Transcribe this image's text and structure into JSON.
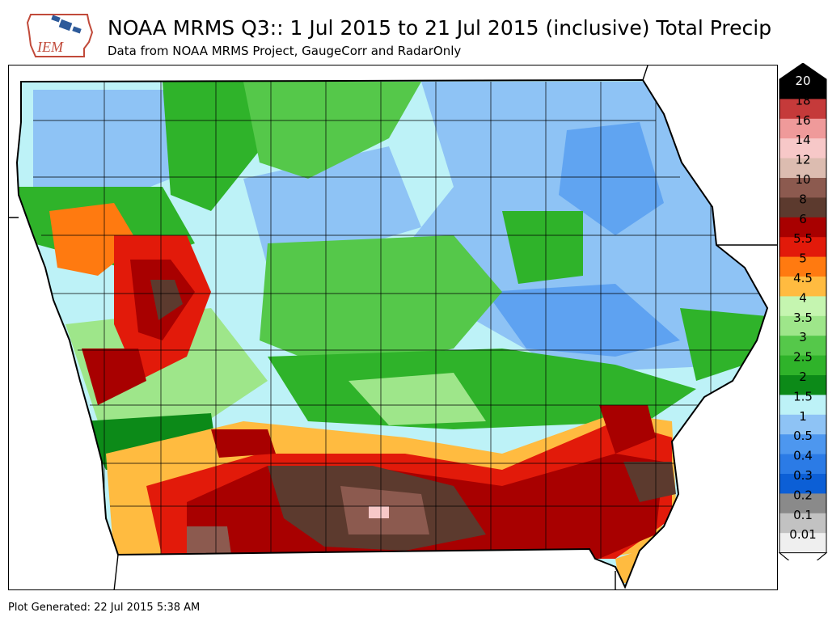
{
  "header": {
    "logo_text": "IEM",
    "title": "NOAA MRMS Q3:: 1 Jul 2015 to 21 Jul 2015 (inclusive) Total Precip",
    "subtitle": "Data from NOAA MRMS Project, GaugeCorr and RadarOnly"
  },
  "legend": {
    "levels": [
      {
        "label": "20",
        "color": "#000000"
      },
      {
        "label": "18",
        "color": "#c53a3a"
      },
      {
        "label": "16",
        "color": "#ef9a9a"
      },
      {
        "label": "14",
        "color": "#f7c8c8"
      },
      {
        "label": "12",
        "color": "#dcbcb0"
      },
      {
        "label": "10",
        "color": "#8c5a4f"
      },
      {
        "label": "8",
        "color": "#5c3a2e"
      },
      {
        "label": "6",
        "color": "#a80000"
      },
      {
        "label": "5.5",
        "color": "#e21a0a"
      },
      {
        "label": "5",
        "color": "#ff7a10"
      },
      {
        "label": "4.5",
        "color": "#ffbb40"
      },
      {
        "label": "4",
        "color": "#c5f5b0"
      },
      {
        "label": "3.5",
        "color": "#9ee68a"
      },
      {
        "label": "3",
        "color": "#55c84a"
      },
      {
        "label": "2.5",
        "color": "#2fb32a"
      },
      {
        "label": "2",
        "color": "#0c8a18"
      },
      {
        "label": "1.5",
        "color": "#bdf2f7"
      },
      {
        "label": "1",
        "color": "#8ec3f5"
      },
      {
        "label": "0.5",
        "color": "#4d97ef"
      },
      {
        "label": "0.4",
        "color": "#2b7be6"
      },
      {
        "label": "0.3",
        "color": "#0c5fd6"
      },
      {
        "label": "0.2",
        "color": "#8a8a8a"
      },
      {
        "label": "0.1",
        "color": "#c2c2c2"
      },
      {
        "label": "0.01",
        "color": "#efefef"
      }
    ]
  },
  "footer": {
    "generated": "Plot Generated: 22 Jul 2015 5:38 AM"
  }
}
